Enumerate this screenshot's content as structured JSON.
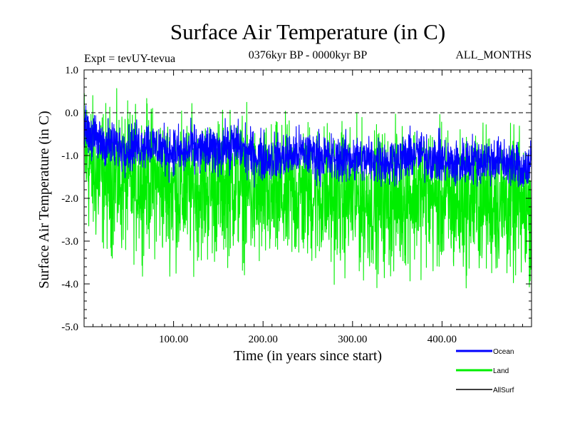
{
  "chart_data": {
    "type": "line",
    "title": "Surface Air Temperature (in C)",
    "subtitle_left": "Expt = tevUY-tevua",
    "subtitle_center": "0376kyr BP - 0000kyr BP",
    "subtitle_right": "ALL_MONTHS",
    "xlabel": "Time (in years since start)",
    "ylabel": "Surface Air Temperature (in C)",
    "xlim": [
      0,
      500
    ],
    "ylim": [
      -5.0,
      1.0
    ],
    "x_ticks": [
      100,
      200,
      300,
      400
    ],
    "x_tick_labels": [
      "100.00",
      "200.00",
      "300.00",
      "400.00"
    ],
    "y_ticks": [
      1.0,
      0.0,
      -1.0,
      -2.0,
      -3.0,
      -4.0,
      -5.0
    ],
    "y_tick_labels": [
      "1.0",
      "0.0",
      "-1.0",
      "-2.0",
      "-3.0",
      "-4.0",
      "-5.0"
    ],
    "zero_line": 0.0,
    "legend_position": "bottom-right",
    "series": [
      {
        "name": "Ocean",
        "color": "#0000ff",
        "x": [
          0,
          10,
          20,
          30,
          40,
          50,
          60,
          70,
          80,
          90,
          100,
          110,
          120,
          130,
          140,
          150,
          160,
          170,
          180,
          190,
          200,
          210,
          220,
          230,
          240,
          250,
          260,
          270,
          280,
          290,
          300,
          310,
          320,
          330,
          340,
          350,
          360,
          370,
          380,
          390,
          400,
          410,
          420,
          430,
          440,
          450,
          460,
          470,
          480,
          490,
          500
        ],
        "mean": [
          -0.3,
          -0.6,
          -0.7,
          -0.75,
          -0.8,
          -0.8,
          -0.75,
          -0.7,
          -0.8,
          -0.85,
          -0.9,
          -0.95,
          -0.85,
          -0.85,
          -0.9,
          -0.85,
          -0.8,
          -0.75,
          -0.9,
          -1.0,
          -1.05,
          -1.05,
          -1.05,
          -1.0,
          -0.95,
          -0.95,
          -1.0,
          -1.05,
          -1.1,
          -1.05,
          -1.05,
          -1.1,
          -1.1,
          -1.1,
          -1.15,
          -1.1,
          -1.05,
          -0.95,
          -1.0,
          -1.05,
          -1.1,
          -1.2,
          -1.2,
          -1.1,
          -1.1,
          -1.1,
          -1.1,
          -1.15,
          -1.25,
          -1.3,
          -1.25
        ],
        "range": [
          -1.75,
          0.2
        ]
      },
      {
        "name": "Land",
        "color": "#00ee00",
        "x": [
          0,
          10,
          20,
          30,
          40,
          50,
          60,
          70,
          80,
          90,
          100,
          110,
          120,
          130,
          140,
          150,
          160,
          170,
          180,
          190,
          200,
          210,
          220,
          230,
          240,
          250,
          260,
          270,
          280,
          290,
          300,
          310,
          320,
          330,
          340,
          350,
          360,
          370,
          380,
          390,
          400,
          410,
          420,
          430,
          440,
          450,
          460,
          470,
          480,
          490,
          500
        ],
        "mean": [
          -0.9,
          -1.4,
          -1.5,
          -1.55,
          -1.6,
          -1.65,
          -1.6,
          -1.5,
          -1.6,
          -1.7,
          -1.8,
          -1.85,
          -1.75,
          -1.75,
          -1.8,
          -1.75,
          -1.7,
          -1.6,
          -1.8,
          -1.95,
          -2.0,
          -2.0,
          -2.0,
          -1.95,
          -1.9,
          -1.85,
          -1.9,
          -1.95,
          -2.0,
          -1.95,
          -2.0,
          -2.05,
          -2.05,
          -2.05,
          -2.1,
          -2.0,
          -1.95,
          -1.85,
          -1.9,
          -2.0,
          -2.05,
          -2.15,
          -2.15,
          -2.05,
          -2.05,
          -2.05,
          -2.1,
          -2.15,
          -2.2,
          -2.25,
          -2.2
        ],
        "range": [
          -4.15,
          0.6
        ]
      },
      {
        "name": "AllSurf",
        "color": "#000000",
        "x": [],
        "mean": []
      }
    ]
  }
}
